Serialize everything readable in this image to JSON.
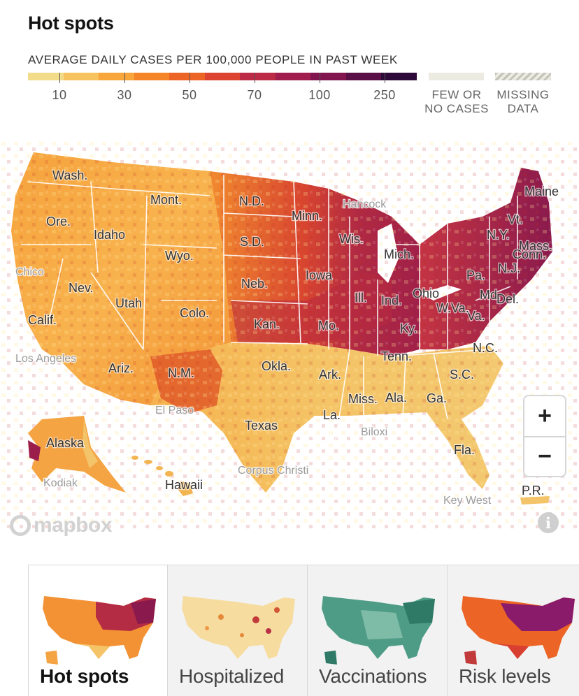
{
  "title": "Hot spots",
  "legend": {
    "caption": "AVERAGE DAILY CASES PER 100,000 PEOPLE IN PAST WEEK",
    "ramp_colors": [
      "#f2dc8a",
      "#f6c35e",
      "#f8a53c",
      "#f6852a",
      "#ec6426",
      "#dc4331",
      "#bb2b45",
      "#a01d4e",
      "#82154f",
      "#5a0f46",
      "#2e0a3a"
    ],
    "ticks": [
      "10",
      "30",
      "50",
      "70",
      "100",
      "250"
    ],
    "few_label": [
      "FEW OR",
      "NO CASES"
    ],
    "missing_label": [
      "MISSING",
      "DATA"
    ],
    "few_color": "#ecebe1"
  },
  "map": {
    "state_labels": [
      "Wash.",
      "Ore.",
      "Idaho",
      "Mont.",
      "Wyo.",
      "Nev.",
      "Utah",
      "Calif.",
      "Colo.",
      "Ariz.",
      "N.M.",
      "N.D.",
      "S.D.",
      "Neb.",
      "Kan.",
      "Okla.",
      "Texas",
      "Minn.",
      "Iowa",
      "Mo.",
      "Ark.",
      "La.",
      "Wis.",
      "Ill.",
      "Mich.",
      "Ind.",
      "Ohio",
      "Ky.",
      "Tenn.",
      "Miss.",
      "Ala.",
      "Ga.",
      "Fla.",
      "S.C.",
      "N.C.",
      "Va.",
      "W.Va.",
      "Pa.",
      "N.Y.",
      "Vt.",
      "Maine",
      "Mass.",
      "Conn.",
      "N.J.",
      "Md.",
      "Del.",
      "Alaska",
      "Hawaii",
      "P.R."
    ],
    "city_labels": [
      "Chico",
      "Los Angeles",
      "El Paso",
      "Corpus Christi",
      "Biloxi",
      "Key West",
      "Kodiak",
      "Hancock"
    ]
  },
  "controls": {
    "zoom_in": "+",
    "zoom_out": "−",
    "attribution": "mapbox",
    "info": "i"
  },
  "tabs": [
    {
      "label": "Hot spots",
      "active": true
    },
    {
      "label": "Hospitalized",
      "active": false
    },
    {
      "label": "Vaccinations",
      "active": false
    },
    {
      "label": "Risk levels",
      "active": false
    }
  ]
}
